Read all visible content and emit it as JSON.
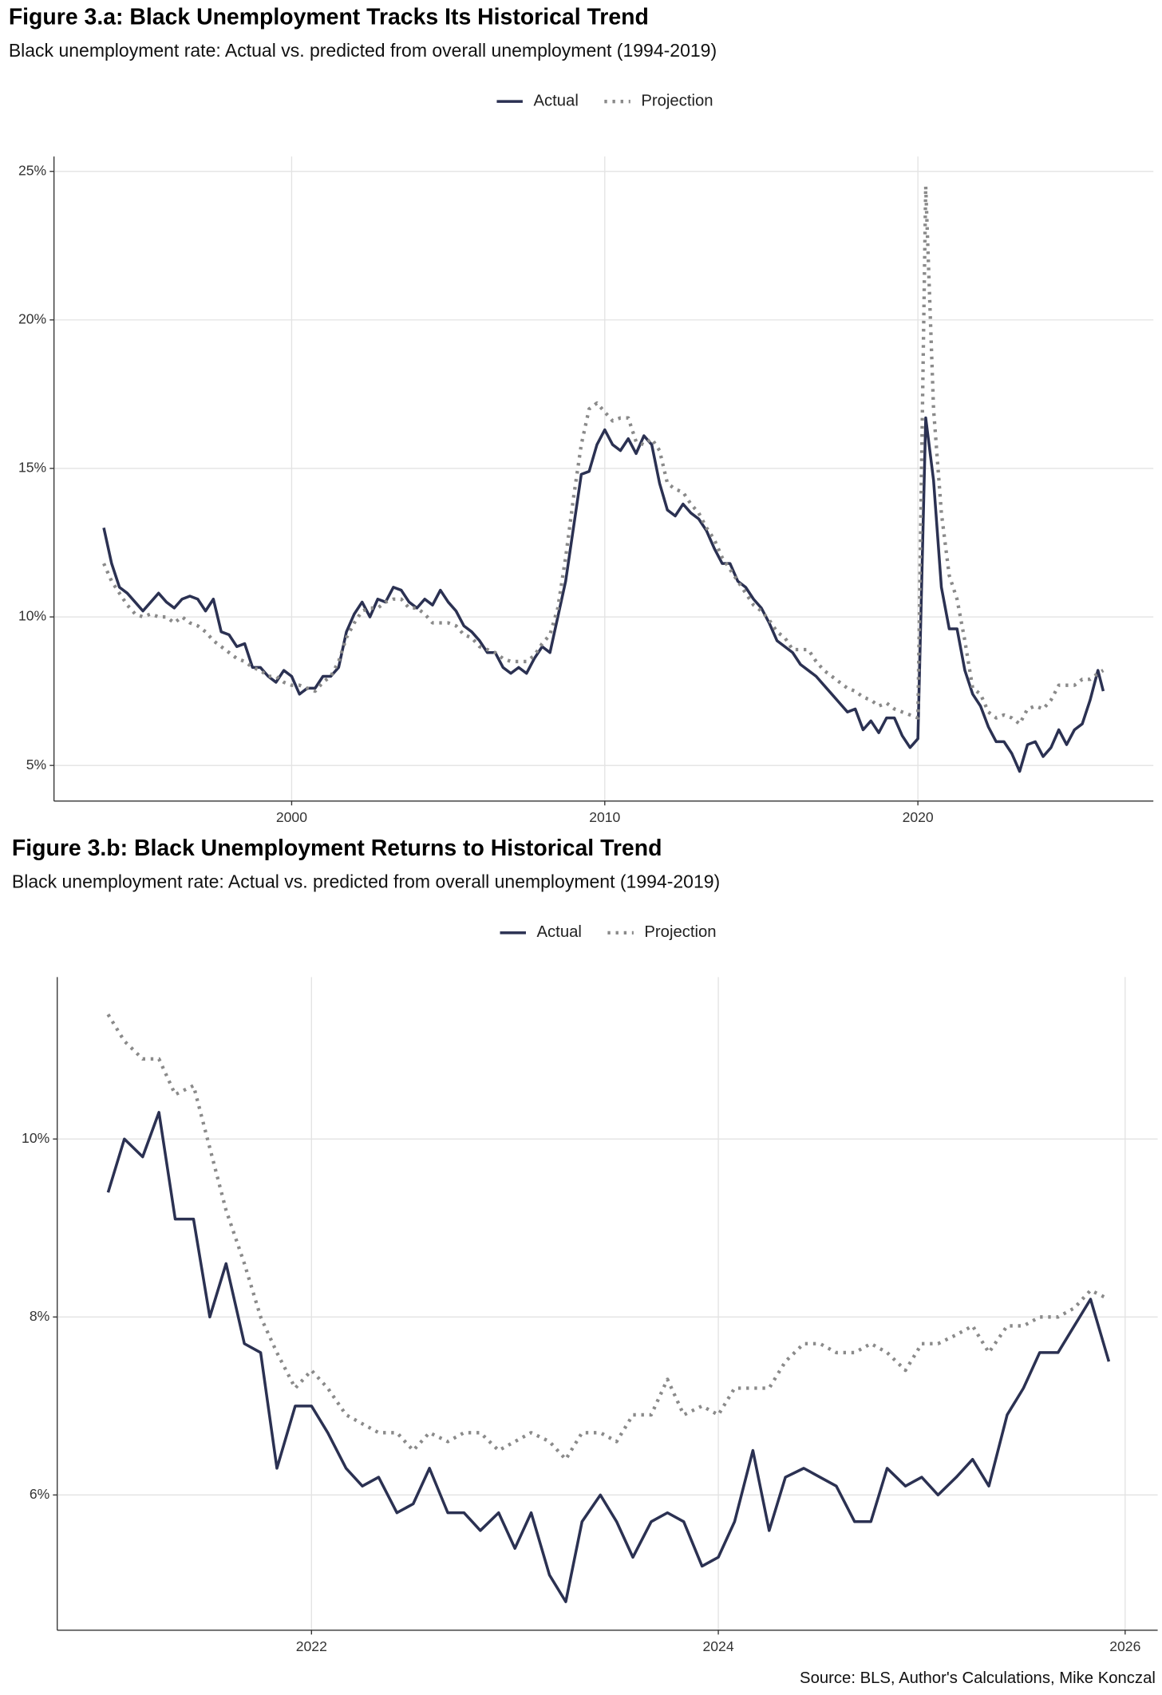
{
  "chart_data": [
    {
      "type": "line",
      "title": "Figure 3.a: Black Unemployment Tracks Its Historical Trend",
      "subtitle": "Black unemployment rate: Actual vs. predicted from overall unemployment (1994-2019)",
      "legend": "top",
      "grid": true,
      "xlim": [
        1992.41,
        2027.52
      ],
      "ylim": [
        3.8,
        25.5
      ],
      "xticks": [
        2000,
        2010,
        2020
      ],
      "yticks": [
        {
          "value": 5,
          "label": "5%"
        },
        {
          "value": 10,
          "label": "10%"
        },
        {
          "value": 15,
          "label": "15%"
        },
        {
          "value": 20,
          "label": "20%"
        },
        {
          "value": 25,
          "label": "25%"
        }
      ],
      "x": [
        1994,
        1994.25,
        1994.5,
        1994.75,
        1995,
        1995.25,
        1995.5,
        1995.75,
        1996,
        1996.25,
        1996.5,
        1996.75,
        1997,
        1997.25,
        1997.5,
        1997.75,
        1998,
        1998.25,
        1998.5,
        1998.75,
        1999,
        1999.25,
        1999.5,
        1999.75,
        2000,
        2000.25,
        2000.5,
        2000.75,
        2001,
        2001.25,
        2001.5,
        2001.75,
        2002,
        2002.25,
        2002.5,
        2002.75,
        2003,
        2003.25,
        2003.5,
        2003.75,
        2004,
        2004.25,
        2004.5,
        2004.75,
        2005,
        2005.25,
        2005.5,
        2005.75,
        2006,
        2006.25,
        2006.5,
        2006.75,
        2007,
        2007.25,
        2007.5,
        2007.75,
        2008,
        2008.25,
        2008.5,
        2008.75,
        2009,
        2009.25,
        2009.5,
        2009.75,
        2010,
        2010.25,
        2010.5,
        2010.75,
        2011,
        2011.25,
        2011.5,
        2011.75,
        2012,
        2012.25,
        2012.5,
        2012.75,
        2013,
        2013.25,
        2013.5,
        2013.75,
        2014,
        2014.25,
        2014.5,
        2014.75,
        2015,
        2015.25,
        2015.5,
        2015.75,
        2016,
        2016.25,
        2016.5,
        2016.75,
        2017,
        2017.25,
        2017.5,
        2017.75,
        2018,
        2018.25,
        2018.5,
        2018.75,
        2019,
        2019.25,
        2019.5,
        2019.75,
        2020,
        2020.25,
        2020.5,
        2020.75,
        2021,
        2021.25,
        2021.5,
        2021.75,
        2022,
        2022.25,
        2022.5,
        2022.75,
        2023,
        2023.25,
        2023.5,
        2023.75,
        2024,
        2024.25,
        2024.5,
        2024.75,
        2025,
        2025.25,
        2025.5,
        2025.75,
        2025.92
      ],
      "series": [
        {
          "name": "Actual",
          "color": "#2b3152",
          "style": "solid",
          "values": [
            13.0,
            11.8,
            11.0,
            10.8,
            10.5,
            10.2,
            10.5,
            10.8,
            10.5,
            10.3,
            10.6,
            10.7,
            10.6,
            10.2,
            10.6,
            9.5,
            9.4,
            9.0,
            9.1,
            8.3,
            8.3,
            8.0,
            7.8,
            8.2,
            8.0,
            7.4,
            7.6,
            7.6,
            8.0,
            8.0,
            8.3,
            9.5,
            10.1,
            10.5,
            10.0,
            10.6,
            10.5,
            11.0,
            10.9,
            10.5,
            10.3,
            10.6,
            10.4,
            10.9,
            10.5,
            10.2,
            9.7,
            9.5,
            9.2,
            8.8,
            8.8,
            8.3,
            8.1,
            8.3,
            8.1,
            8.6,
            9.0,
            8.8,
            10.0,
            11.2,
            13.0,
            14.8,
            14.9,
            15.8,
            16.3,
            15.8,
            15.6,
            16.0,
            15.5,
            16.1,
            15.8,
            14.5,
            13.6,
            13.4,
            13.8,
            13.5,
            13.3,
            12.9,
            12.3,
            11.8,
            11.8,
            11.2,
            11.0,
            10.6,
            10.3,
            9.8,
            9.2,
            9.0,
            8.8,
            8.4,
            8.2,
            8.0,
            7.7,
            7.4,
            7.1,
            6.8,
            6.9,
            6.2,
            6.5,
            6.1,
            6.6,
            6.6,
            6.0,
            5.6,
            5.9,
            16.7,
            14.6,
            11.0,
            9.6,
            9.6,
            8.2,
            7.4,
            7.0,
            6.3,
            5.8,
            5.8,
            5.4,
            4.8,
            5.7,
            5.8,
            5.3,
            5.6,
            6.2,
            5.7,
            6.2,
            6.4,
            7.2,
            8.2,
            7.5
          ]
        },
        {
          "name": "Projection",
          "color": "#8a8a8a",
          "style": "dotted",
          "values": [
            11.8,
            11.2,
            10.8,
            10.4,
            10.1,
            10.0,
            10.1,
            10.0,
            10.0,
            9.8,
            10.0,
            9.8,
            9.7,
            9.5,
            9.2,
            9.0,
            8.8,
            8.6,
            8.5,
            8.3,
            8.2,
            8.0,
            8.0,
            7.8,
            7.7,
            7.7,
            7.6,
            7.5,
            7.8,
            8.0,
            8.5,
            9.3,
            9.8,
            10.2,
            10.3,
            10.3,
            10.5,
            10.6,
            10.6,
            10.3,
            10.3,
            10.1,
            9.8,
            9.8,
            9.8,
            9.7,
            9.4,
            9.3,
            9.0,
            8.9,
            8.8,
            8.6,
            8.5,
            8.5,
            8.5,
            8.7,
            9.1,
            9.4,
            10.3,
            12.0,
            14.0,
            15.8,
            17.0,
            17.2,
            16.9,
            16.6,
            16.7,
            16.7,
            15.9,
            15.8,
            16.0,
            15.6,
            14.5,
            14.3,
            14.2,
            13.8,
            13.5,
            13.0,
            12.6,
            12.0,
            11.6,
            11.2,
            10.8,
            10.4,
            10.2,
            9.9,
            9.5,
            9.3,
            8.9,
            8.9,
            8.9,
            8.5,
            8.2,
            8.0,
            7.8,
            7.6,
            7.5,
            7.3,
            7.2,
            7.0,
            7.1,
            6.9,
            6.8,
            6.7,
            6.6,
            24.5,
            17.0,
            13.5,
            11.4,
            10.6,
            9.2,
            7.6,
            7.4,
            6.8,
            6.6,
            6.7,
            6.6,
            6.4,
            6.9,
            7.0,
            6.9,
            7.2,
            7.7,
            7.7,
            7.7,
            7.9,
            7.9,
            8.1,
            8.2
          ]
        }
      ]
    },
    {
      "type": "line",
      "title": "Figure 3.b: Black Unemployment Returns to Historical Trend",
      "subtitle": "Black unemployment rate: Actual vs. predicted from overall unemployment (1994-2019)",
      "caption": "Source: BLS, Author's Calculations, Mike Konczal",
      "legend": "top",
      "grid": true,
      "xlim": [
        2020.75,
        2026.16
      ],
      "ylim": [
        4.48,
        11.82
      ],
      "xticks": [
        2022,
        2024,
        2026
      ],
      "yticks": [
        {
          "value": 6,
          "label": "6%"
        },
        {
          "value": 8,
          "label": "8%"
        },
        {
          "value": 10,
          "label": "10%"
        }
      ],
      "x": [
        2021,
        2021.08,
        2021.17,
        2021.25,
        2021.33,
        2021.42,
        2021.5,
        2021.58,
        2021.67,
        2021.75,
        2021.83,
        2021.92,
        2022,
        2022.08,
        2022.17,
        2022.25,
        2022.33,
        2022.42,
        2022.5,
        2022.58,
        2022.67,
        2022.75,
        2022.83,
        2022.92,
        2023,
        2023.08,
        2023.17,
        2023.25,
        2023.33,
        2023.42,
        2023.5,
        2023.58,
        2023.67,
        2023.75,
        2023.83,
        2023.92,
        2024,
        2024.08,
        2024.17,
        2024.25,
        2024.33,
        2024.42,
        2024.5,
        2024.58,
        2024.67,
        2024.75,
        2024.83,
        2024.92,
        2025,
        2025.08,
        2025.17,
        2025.25,
        2025.33,
        2025.42,
        2025.5,
        2025.58,
        2025.67,
        2025.75,
        2025.83,
        2025.92
      ],
      "series": [
        {
          "name": "Actual",
          "color": "#2b3152",
          "style": "solid",
          "values": [
            9.4,
            10.0,
            9.8,
            10.3,
            9.1,
            9.1,
            8.0,
            8.6,
            7.7,
            7.6,
            6.3,
            7.0,
            7.0,
            6.7,
            6.3,
            6.1,
            6.2,
            5.8,
            5.9,
            6.3,
            5.8,
            5.8,
            5.6,
            5.8,
            5.4,
            5.8,
            5.1,
            4.8,
            5.7,
            6.0,
            5.7,
            5.3,
            5.7,
            5.8,
            5.7,
            5.2,
            5.3,
            5.7,
            6.5,
            5.6,
            6.2,
            6.3,
            6.2,
            6.1,
            5.7,
            5.7,
            6.3,
            6.1,
            6.2,
            6.0,
            6.2,
            6.4,
            6.1,
            6.9,
            7.2,
            7.6,
            7.6,
            7.9,
            8.2,
            7.5
          ]
        },
        {
          "name": "Projection",
          "color": "#8a8a8a",
          "style": "dotted",
          "values": [
            11.4,
            11.1,
            10.9,
            10.9,
            10.5,
            10.6,
            9.9,
            9.2,
            8.6,
            8.0,
            7.6,
            7.2,
            7.4,
            7.2,
            6.9,
            6.8,
            6.7,
            6.7,
            6.5,
            6.7,
            6.6,
            6.7,
            6.7,
            6.5,
            6.6,
            6.7,
            6.6,
            6.4,
            6.7,
            6.7,
            6.6,
            6.9,
            6.9,
            7.3,
            6.9,
            7.0,
            6.9,
            7.2,
            7.2,
            7.2,
            7.5,
            7.7,
            7.7,
            7.6,
            7.6,
            7.7,
            7.6,
            7.4,
            7.7,
            7.7,
            7.8,
            7.9,
            7.6,
            7.9,
            7.9,
            8.0,
            8.0,
            8.1,
            8.3,
            8.2
          ]
        }
      ]
    }
  ]
}
